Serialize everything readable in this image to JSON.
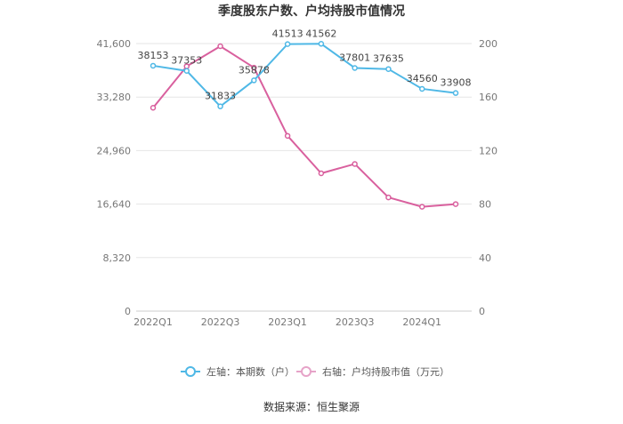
{
  "chart_data": {
    "type": "line",
    "title": "季度股东户数、户均持股市值情况",
    "categories": [
      "2022Q1",
      "2022Q2",
      "2022Q3",
      "2022Q4",
      "2023Q1",
      "2023Q2",
      "2023Q3",
      "2023Q4",
      "2024Q1",
      "2024Q2"
    ],
    "x_tick_labels": [
      "2022Q1",
      "2022Q3",
      "2023Q1",
      "2023Q3",
      "2024Q1"
    ],
    "left_axis": {
      "min": 0,
      "max": 41600,
      "ticks": [
        "0",
        "8,320",
        "16,640",
        "24,960",
        "33,280",
        "41,600"
      ]
    },
    "right_axis": {
      "min": 0,
      "max": 200,
      "ticks": [
        "0",
        "40",
        "80",
        "120",
        "160",
        "200"
      ]
    },
    "series": [
      {
        "name": "左轴：本期数（户）",
        "axis": "left",
        "color": "#4fb8e6",
        "values": [
          38153,
          37353,
          31833,
          35878,
          41513,
          41562,
          37801,
          37635,
          34560,
          33908
        ],
        "labels": [
          "38153",
          "37353",
          "31833",
          "35878",
          "41513",
          "41562",
          "37801",
          "37635",
          "34560",
          "33908"
        ]
      },
      {
        "name": "右轴：户均持股市值（万元）",
        "axis": "right",
        "color": "#d9609e",
        "values": [
          152,
          183,
          198,
          182,
          131,
          103,
          110,
          85,
          78,
          80
        ]
      }
    ],
    "grid": true,
    "legend_position": "bottom"
  },
  "source_text": "数据来源：恒生聚源"
}
